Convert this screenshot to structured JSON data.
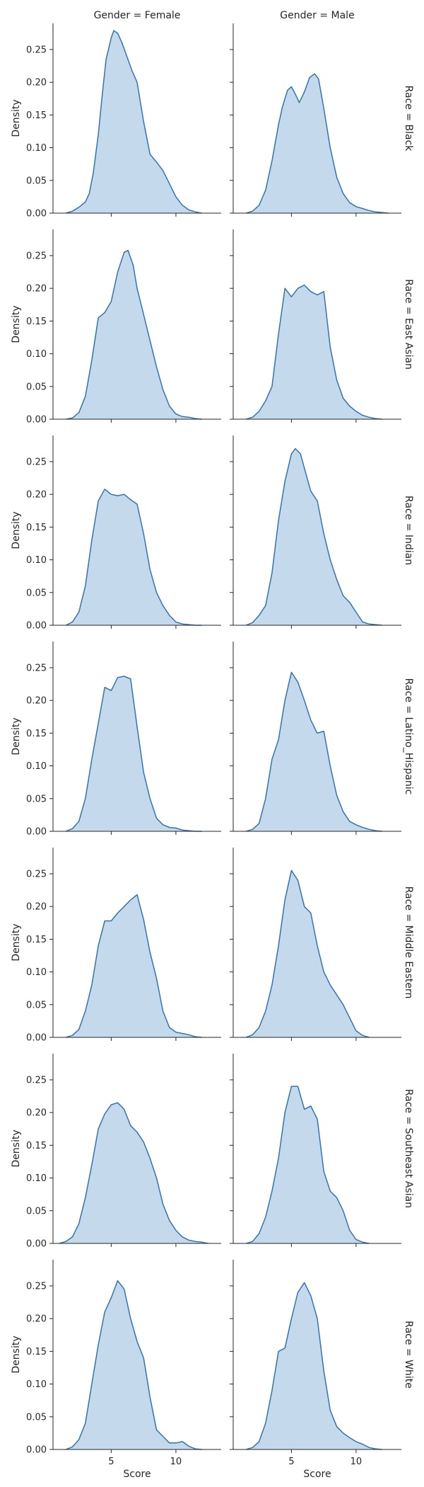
{
  "chart_data": {
    "type": "area",
    "col_facet_titles": [
      "Gender = Female",
      "Gender = Male"
    ],
    "row_facet_titles": [
      "Race = Black",
      "Race = East Asian",
      "Race = Indian",
      "Race = Latino_Hispanic",
      "Race = Middle Eastern",
      "Race = Southeast Asian",
      "Race = White"
    ],
    "xlabel": "Score",
    "ylabel": "Density",
    "xlim": [
      0.5,
      13.5
    ],
    "ylim": [
      0,
      0.29
    ],
    "xticks": [
      5,
      10
    ],
    "yticks": [
      0.0,
      0.05,
      0.1,
      0.15,
      0.2,
      0.25
    ],
    "ytick_labels": [
      "0.00",
      "0.05",
      "0.10",
      "0.15",
      "0.20",
      "0.25"
    ],
    "grid": false,
    "legend": "none",
    "fill_color": "#c4d9ec",
    "line_color": "#3274b0",
    "panels": [
      [
        {
          "x": [
            1.5,
            2,
            2.5,
            3,
            3.3,
            3.6,
            4,
            4.3,
            4.6,
            5,
            5.2,
            5.5,
            5.8,
            6.2,
            6.6,
            7,
            7.5,
            8,
            8.5,
            9,
            9.5,
            10,
            10.5,
            11,
            11.5,
            12
          ],
          "y": [
            0,
            0.003,
            0.009,
            0.017,
            0.03,
            0.06,
            0.12,
            0.18,
            0.235,
            0.268,
            0.279,
            0.275,
            0.262,
            0.24,
            0.218,
            0.2,
            0.14,
            0.09,
            0.078,
            0.065,
            0.045,
            0.025,
            0.012,
            0.005,
            0.002,
            0
          ]
        },
        {
          "x": [
            1.5,
            2,
            2.5,
            3,
            3.5,
            4,
            4.3,
            4.7,
            5,
            5.3,
            5.6,
            6,
            6.4,
            6.8,
            7.1,
            7.5,
            8,
            8.5,
            9,
            9.5,
            10,
            10.5,
            11,
            11.5,
            12,
            12.5
          ],
          "y": [
            0,
            0.003,
            0.012,
            0.035,
            0.08,
            0.135,
            0.162,
            0.188,
            0.193,
            0.182,
            0.169,
            0.185,
            0.207,
            0.213,
            0.205,
            0.16,
            0.1,
            0.055,
            0.03,
            0.016,
            0.01,
            0.007,
            0.004,
            0.002,
            0.001,
            0
          ]
        }
      ],
      [
        {
          "x": [
            1.5,
            2,
            2.5,
            3,
            3.5,
            4,
            4.5,
            5,
            5.5,
            6,
            6.3,
            6.7,
            7,
            7.5,
            8,
            8.5,
            9,
            9.5,
            10,
            10.5,
            11,
            11.5,
            12
          ],
          "y": [
            0,
            0.002,
            0.01,
            0.035,
            0.09,
            0.155,
            0.163,
            0.18,
            0.225,
            0.255,
            0.258,
            0.235,
            0.2,
            0.16,
            0.12,
            0.08,
            0.045,
            0.02,
            0.008,
            0.004,
            0.003,
            0.001,
            0
          ]
        },
        {
          "x": [
            1.5,
            2,
            2.5,
            3,
            3.5,
            4,
            4.5,
            5,
            5.5,
            6,
            6.5,
            7,
            7.5,
            8,
            8.5,
            9,
            9.5,
            10,
            10.5,
            11,
            11.5,
            12
          ],
          "y": [
            0,
            0.003,
            0.012,
            0.028,
            0.05,
            0.13,
            0.2,
            0.187,
            0.2,
            0.205,
            0.195,
            0.19,
            0.195,
            0.11,
            0.06,
            0.032,
            0.02,
            0.012,
            0.006,
            0.003,
            0.001,
            0
          ]
        }
      ],
      [
        {
          "x": [
            1.5,
            2,
            2.5,
            3,
            3.5,
            4,
            4.5,
            5,
            5.5,
            6,
            6.5,
            7,
            7.5,
            8,
            8.5,
            9,
            9.5,
            10,
            10.5,
            11,
            11.5,
            12
          ],
          "y": [
            0,
            0.005,
            0.02,
            0.06,
            0.13,
            0.19,
            0.208,
            0.2,
            0.198,
            0.2,
            0.192,
            0.185,
            0.14,
            0.085,
            0.05,
            0.03,
            0.015,
            0.005,
            0.002,
            0.001,
            0,
            0
          ]
        },
        {
          "x": [
            1.5,
            2,
            2.5,
            3,
            3.5,
            4,
            4.5,
            5,
            5.3,
            5.7,
            6,
            6.5,
            7,
            7.5,
            8,
            8.5,
            9,
            9.5,
            10,
            10.5,
            11,
            11.5,
            12
          ],
          "y": [
            0,
            0.004,
            0.015,
            0.03,
            0.08,
            0.16,
            0.22,
            0.262,
            0.27,
            0.262,
            0.24,
            0.205,
            0.19,
            0.14,
            0.1,
            0.07,
            0.045,
            0.035,
            0.02,
            0.005,
            0.002,
            0.001,
            0
          ]
        }
      ],
      [
        {
          "x": [
            1.5,
            2,
            2.5,
            3,
            3.5,
            4,
            4.5,
            5,
            5.5,
            6,
            6.5,
            7,
            7.5,
            8,
            8.5,
            9,
            9.5,
            10,
            10.5,
            11,
            11.5,
            12
          ],
          "y": [
            0,
            0.004,
            0.015,
            0.05,
            0.11,
            0.165,
            0.22,
            0.215,
            0.235,
            0.237,
            0.233,
            0.16,
            0.09,
            0.05,
            0.02,
            0.01,
            0.006,
            0.005,
            0.002,
            0.001,
            0,
            0
          ]
        },
        {
          "x": [
            1.5,
            2,
            2.5,
            3,
            3.5,
            4,
            4.5,
            5,
            5.5,
            6,
            6.5,
            7,
            7.5,
            8,
            8.5,
            9,
            9.5,
            10,
            10.5,
            11,
            11.5,
            12
          ],
          "y": [
            0,
            0.003,
            0.012,
            0.05,
            0.11,
            0.14,
            0.2,
            0.243,
            0.228,
            0.2,
            0.17,
            0.15,
            0.153,
            0.1,
            0.055,
            0.03,
            0.015,
            0.01,
            0.006,
            0.003,
            0.001,
            0
          ]
        }
      ],
      [
        {
          "x": [
            1.5,
            2,
            2.5,
            3,
            3.5,
            4,
            4.5,
            5,
            5.5,
            6,
            6.5,
            7,
            7.5,
            8,
            8.5,
            9,
            9.5,
            10,
            10.5,
            11,
            11.5,
            12
          ],
          "y": [
            0,
            0.003,
            0.012,
            0.04,
            0.08,
            0.14,
            0.178,
            0.178,
            0.19,
            0.2,
            0.21,
            0.218,
            0.18,
            0.13,
            0.09,
            0.04,
            0.015,
            0.008,
            0.006,
            0.004,
            0.001,
            0
          ]
        },
        {
          "x": [
            1.5,
            2,
            2.5,
            3,
            3.5,
            4,
            4.5,
            5,
            5.5,
            6,
            6.5,
            7,
            7.5,
            8,
            8.5,
            9,
            9.5,
            10,
            10.5,
            11
          ],
          "y": [
            0,
            0.004,
            0.015,
            0.04,
            0.08,
            0.14,
            0.21,
            0.255,
            0.24,
            0.2,
            0.19,
            0.14,
            0.1,
            0.08,
            0.065,
            0.05,
            0.03,
            0.01,
            0.003,
            0
          ]
        }
      ],
      [
        {
          "x": [
            1,
            1.5,
            2,
            2.5,
            3,
            3.5,
            4,
            4.5,
            5,
            5.5,
            6,
            6.5,
            7,
            7.5,
            8,
            8.5,
            9,
            9.5,
            10,
            10.5,
            11,
            11.5,
            12,
            12.5
          ],
          "y": [
            0,
            0.003,
            0.01,
            0.03,
            0.07,
            0.12,
            0.175,
            0.198,
            0.212,
            0.215,
            0.205,
            0.18,
            0.17,
            0.155,
            0.13,
            0.1,
            0.06,
            0.035,
            0.02,
            0.01,
            0.005,
            0.003,
            0.002,
            0
          ]
        },
        {
          "x": [
            1.5,
            2,
            2.5,
            3,
            3.5,
            4,
            4.5,
            5,
            5.5,
            6,
            6.5,
            7,
            7.5,
            8,
            8.5,
            9,
            9.5,
            10,
            10.5,
            11
          ],
          "y": [
            0,
            0.003,
            0.015,
            0.04,
            0.08,
            0.13,
            0.2,
            0.24,
            0.24,
            0.205,
            0.21,
            0.19,
            0.11,
            0.08,
            0.07,
            0.05,
            0.02,
            0.006,
            0.002,
            0
          ]
        }
      ],
      [
        {
          "x": [
            1.5,
            2,
            2.5,
            3,
            3.5,
            4,
            4.5,
            5,
            5.5,
            6,
            6.5,
            7,
            7.5,
            8,
            8.5,
            9,
            9.5,
            10,
            10.5,
            11,
            11.5,
            12
          ],
          "y": [
            0,
            0.004,
            0.015,
            0.04,
            0.1,
            0.16,
            0.21,
            0.232,
            0.258,
            0.245,
            0.2,
            0.165,
            0.14,
            0.08,
            0.03,
            0.02,
            0.01,
            0.01,
            0.012,
            0.005,
            0.001,
            0
          ]
        },
        {
          "x": [
            1.5,
            2,
            2.5,
            3,
            3.5,
            4,
            4.5,
            5,
            5.5,
            6,
            6.5,
            7,
            7.5,
            8,
            8.5,
            9,
            9.5,
            10,
            10.5,
            11,
            11.5,
            12
          ],
          "y": [
            0,
            0.003,
            0.012,
            0.04,
            0.09,
            0.15,
            0.155,
            0.2,
            0.24,
            0.255,
            0.235,
            0.2,
            0.12,
            0.06,
            0.035,
            0.025,
            0.018,
            0.012,
            0.008,
            0.003,
            0.001,
            0
          ]
        }
      ]
    ]
  }
}
